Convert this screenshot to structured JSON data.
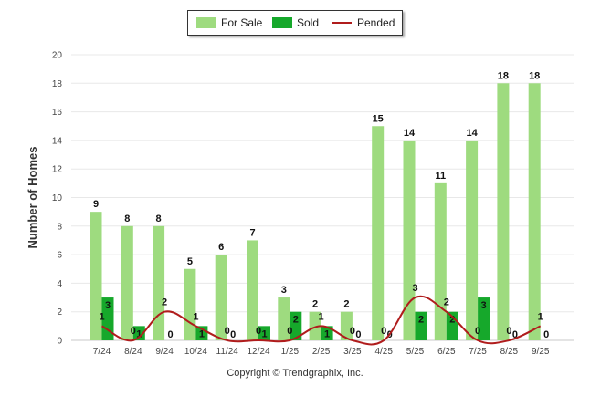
{
  "chart_data": {
    "type": "bar",
    "title": "",
    "xlabel": "",
    "ylabel": "Number of Homes",
    "ylim": [
      0,
      20
    ],
    "yticks": [
      0,
      2,
      4,
      6,
      8,
      10,
      12,
      14,
      16,
      18,
      20
    ],
    "categories": [
      "7/24",
      "8/24",
      "9/24",
      "10/24",
      "11/24",
      "12/24",
      "1/25",
      "2/25",
      "3/25",
      "4/25",
      "5/25",
      "6/25",
      "7/25",
      "8/25",
      "9/25"
    ],
    "series": [
      {
        "name": "For Sale",
        "kind": "bar",
        "color": "#9edb7f",
        "values": [
          9,
          8,
          8,
          5,
          6,
          7,
          3,
          2,
          2,
          15,
          14,
          11,
          14,
          18,
          18
        ]
      },
      {
        "name": "Sold",
        "kind": "bar",
        "color": "#16a82b",
        "values": [
          3,
          1,
          0,
          1,
          0,
          1,
          2,
          1,
          0,
          0,
          2,
          2,
          3,
          0,
          0
        ]
      },
      {
        "name": "Pended",
        "kind": "line",
        "color": "#b01c1c",
        "values": [
          1,
          0,
          2,
          1,
          0,
          0,
          0,
          1,
          0,
          0,
          3,
          2,
          0,
          0,
          1
        ]
      }
    ],
    "legend": {
      "position": "top-center"
    }
  },
  "footer": {
    "copyright": "Copyright © Trendgraphix, Inc."
  }
}
